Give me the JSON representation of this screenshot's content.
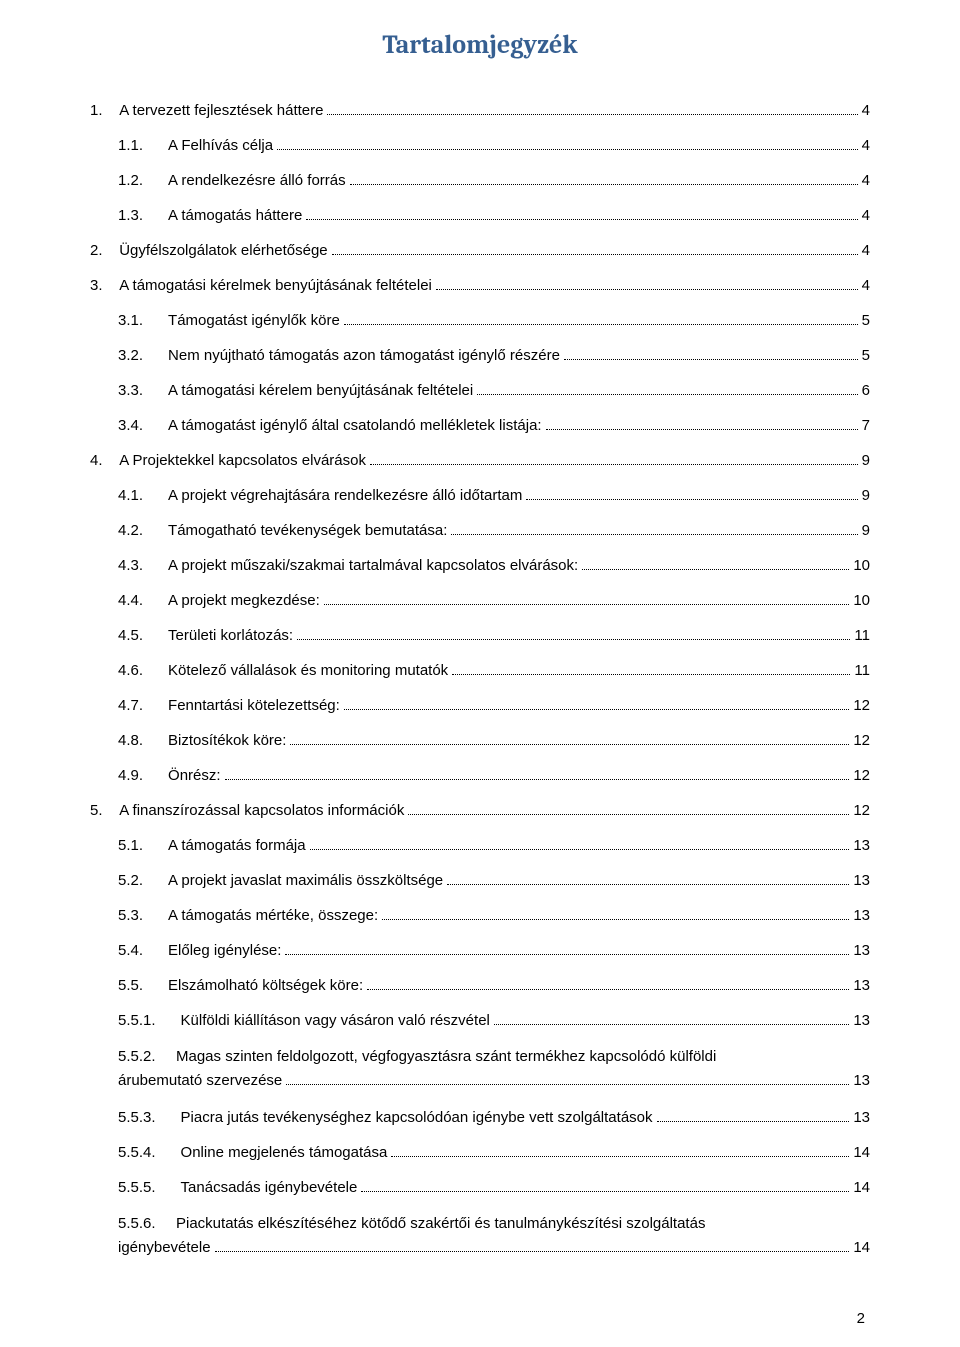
{
  "title": "Tartalomjegyzék",
  "title_color": "#365f91",
  "text_color": "#000000",
  "bg_color": "#ffffff",
  "page_number": "2",
  "entries": [
    {
      "num": "1.",
      "text": "A tervezett fejlesztések háttere",
      "page": "4",
      "indent": 0
    },
    {
      "num": "1.1.",
      "text": "A Felhívás célja",
      "page": "4",
      "indent": 1
    },
    {
      "num": "1.2.",
      "text": "A rendelkezésre álló forrás",
      "page": "4",
      "indent": 1
    },
    {
      "num": "1.3.",
      "text": "A támogatás háttere",
      "page": "4",
      "indent": 1
    },
    {
      "num": "2.",
      "text": "Ügyfélszolgálatok elérhetősége",
      "page": "4",
      "indent": 0
    },
    {
      "num": "3.",
      "text": "A támogatási kérelmek benyújtásának feltételei",
      "page": "4",
      "indent": 0
    },
    {
      "num": "3.1.",
      "text": "Támogatást igénylők köre",
      "page": "5",
      "indent": 1
    },
    {
      "num": "3.2.",
      "text": "Nem nyújtható támogatás azon támogatást igénylő részére",
      "page": "5",
      "indent": 1
    },
    {
      "num": "3.3.",
      "text": "A támogatási kérelem benyújtásának feltételei",
      "page": "6",
      "indent": 1
    },
    {
      "num": "3.4.",
      "text": "A támogatást igénylő által csatolandó mellékletek listája:",
      "page": "7",
      "indent": 1
    },
    {
      "num": "4.",
      "text": "A Projektekkel kapcsolatos elvárások",
      "page": "9",
      "indent": 0
    },
    {
      "num": "4.1.",
      "text": "A projekt végrehajtására rendelkezésre álló időtartam",
      "page": "9",
      "indent": 1
    },
    {
      "num": "4.2.",
      "text": "Támogatható tevékenységek bemutatása:",
      "page": "9",
      "indent": 1
    },
    {
      "num": "4.3.",
      "text": "A projekt műszaki/szakmai tartalmával kapcsolatos elvárások:",
      "page": "10",
      "indent": 1
    },
    {
      "num": "4.4.",
      "text": "A projekt megkezdése:",
      "page": "10",
      "indent": 1
    },
    {
      "num": "4.5.",
      "text": "Területi korlátozás:",
      "page": "11",
      "indent": 1
    },
    {
      "num": "4.6.",
      "text": "Kötelező vállalások és monitoring mutatók",
      "page": "11",
      "indent": 1
    },
    {
      "num": "4.7.",
      "text": "Fenntartási kötelezettség:",
      "page": "12",
      "indent": 1
    },
    {
      "num": "4.8.",
      "text": "Biztosítékok köre:",
      "page": "12",
      "indent": 1
    },
    {
      "num": "4.9.",
      "text": "Önrész:",
      "page": "12",
      "indent": 1
    },
    {
      "num": "5.",
      "text": "A finanszírozással kapcsolatos információk",
      "page": "12",
      "indent": 0
    },
    {
      "num": "5.1.",
      "text": "A támogatás formája",
      "page": "13",
      "indent": 1
    },
    {
      "num": "5.2.",
      "text": "A projekt javaslat maximális összköltsége",
      "page": "13",
      "indent": 1
    },
    {
      "num": "5.3.",
      "text": "A támogatás mértéke, összege:",
      "page": "13",
      "indent": 1
    },
    {
      "num": "5.4.",
      "text": "Előleg igénylése:",
      "page": "13",
      "indent": 1
    },
    {
      "num": "5.5.",
      "text": "Elszámolható költségek köre:",
      "page": "13",
      "indent": 1
    },
    {
      "num": "5.5.1.",
      "text": "Külföldi kiállításon vagy vásáron való részvétel",
      "page": "13",
      "indent": 2
    },
    {
      "num": "5.5.2.",
      "text_line1": "Magas szinten feldolgozott, végfogyasztásra szánt termékhez kapcsolódó külföldi",
      "text_line2": "árubemutató szervezése",
      "page": "13",
      "indent": 2,
      "wrap": true
    },
    {
      "num": "5.5.3.",
      "text": "Piacra jutás tevékenységhez kapcsolódóan igénybe vett szolgáltatások",
      "page": "13",
      "indent": 2
    },
    {
      "num": "5.5.4.",
      "text": "Online megjelenés támogatása",
      "page": "14",
      "indent": 2
    },
    {
      "num": "5.5.5.",
      "text": "Tanácsadás igénybevétele",
      "page": "14",
      "indent": 2
    },
    {
      "num": "5.5.6.",
      "text_line1": "Piackutatás elkészítéséhez kötődő szakértői és tanulmánykészítési szolgáltatás",
      "text_line2": "igénybevétele",
      "page": "14",
      "indent": 2,
      "wrap": true
    }
  ]
}
